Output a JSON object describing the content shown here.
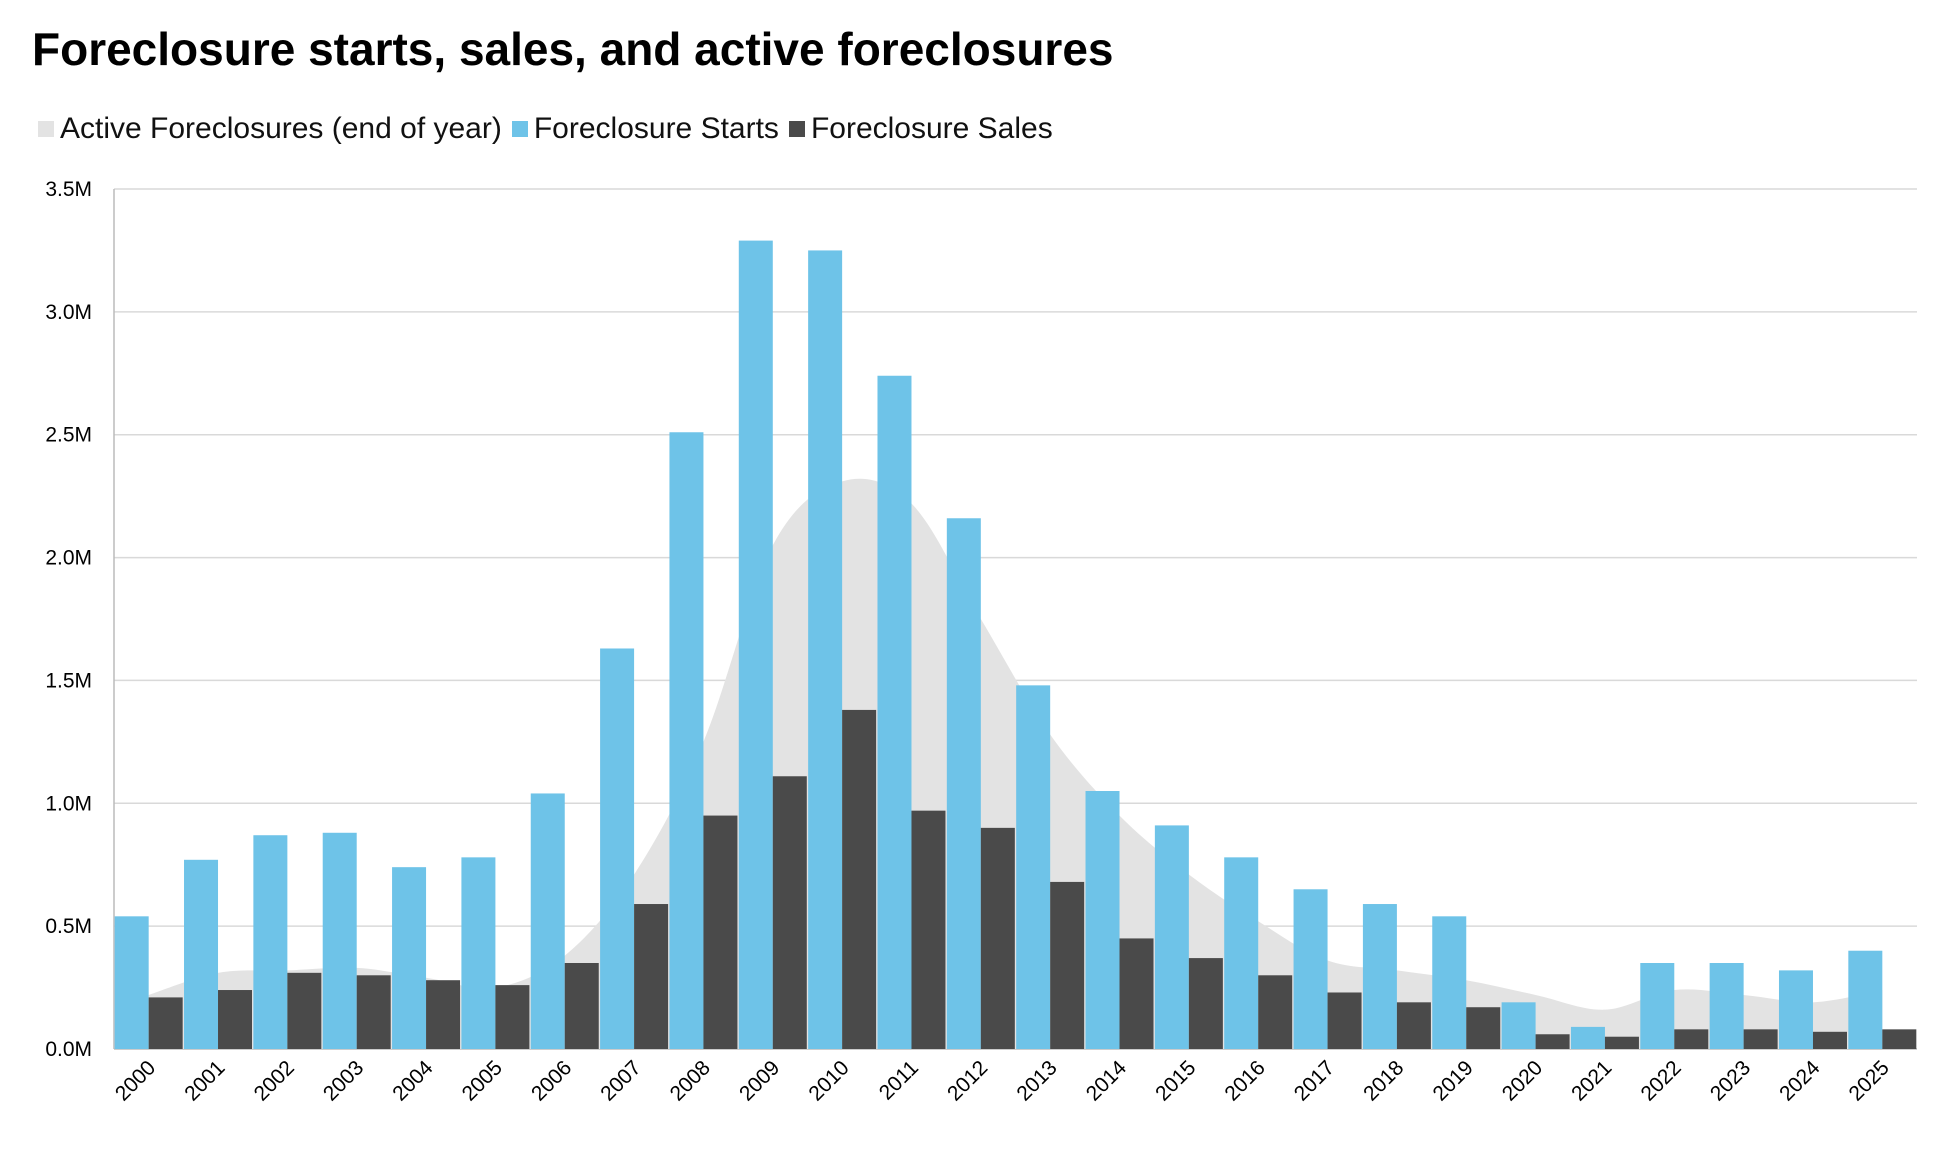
{
  "chart_data": {
    "type": "bar",
    "title": "Foreclosure starts, sales, and active foreclosures",
    "xlabel": "",
    "ylabel": "",
    "ylim": [
      0,
      3.5
    ],
    "yunit": "M",
    "yticks": [
      "0.0M",
      "0.5M",
      "1.0M",
      "1.5M",
      "2.0M",
      "2.5M",
      "3.0M",
      "3.5M"
    ],
    "grid": true,
    "legend_position": "top-left",
    "categories": [
      "2000",
      "2001",
      "2002",
      "2003",
      "2004",
      "2005",
      "2006",
      "2007",
      "2008",
      "2009",
      "2010",
      "2011",
      "2012",
      "2013",
      "2014",
      "2015",
      "2016",
      "2017",
      "2018",
      "2019",
      "2020",
      "2021",
      "2022",
      "2023",
      "2024",
      "2025"
    ],
    "series": [
      {
        "name": "Active Foreclosures (end of year)",
        "kind": "area",
        "color": "#e3e3e3",
        "values": [
          0.22,
          0.31,
          0.32,
          0.33,
          0.29,
          0.25,
          0.38,
          0.71,
          1.25,
          2.05,
          2.31,
          2.22,
          1.75,
          1.28,
          0.95,
          0.71,
          0.52,
          0.36,
          0.32,
          0.28,
          0.22,
          0.16,
          0.24,
          0.22,
          0.19,
          0.24
        ]
      },
      {
        "name": "Foreclosure Starts",
        "kind": "bar",
        "color": "#6ec3e8",
        "values": [
          0.54,
          0.77,
          0.87,
          0.88,
          0.74,
          0.78,
          1.04,
          1.63,
          2.51,
          3.29,
          3.25,
          2.74,
          2.16,
          1.48,
          1.05,
          0.91,
          0.78,
          0.65,
          0.59,
          0.54,
          0.19,
          0.09,
          0.35,
          0.35,
          0.32,
          0.4
        ]
      },
      {
        "name": "Foreclosure Sales",
        "kind": "bar",
        "color": "#4a4a4a",
        "values": [
          0.21,
          0.24,
          0.31,
          0.3,
          0.28,
          0.26,
          0.35,
          0.59,
          0.95,
          1.11,
          1.38,
          0.97,
          0.9,
          0.68,
          0.45,
          0.37,
          0.3,
          0.23,
          0.19,
          0.17,
          0.06,
          0.05,
          0.08,
          0.08,
          0.07,
          0.08
        ]
      }
    ]
  }
}
